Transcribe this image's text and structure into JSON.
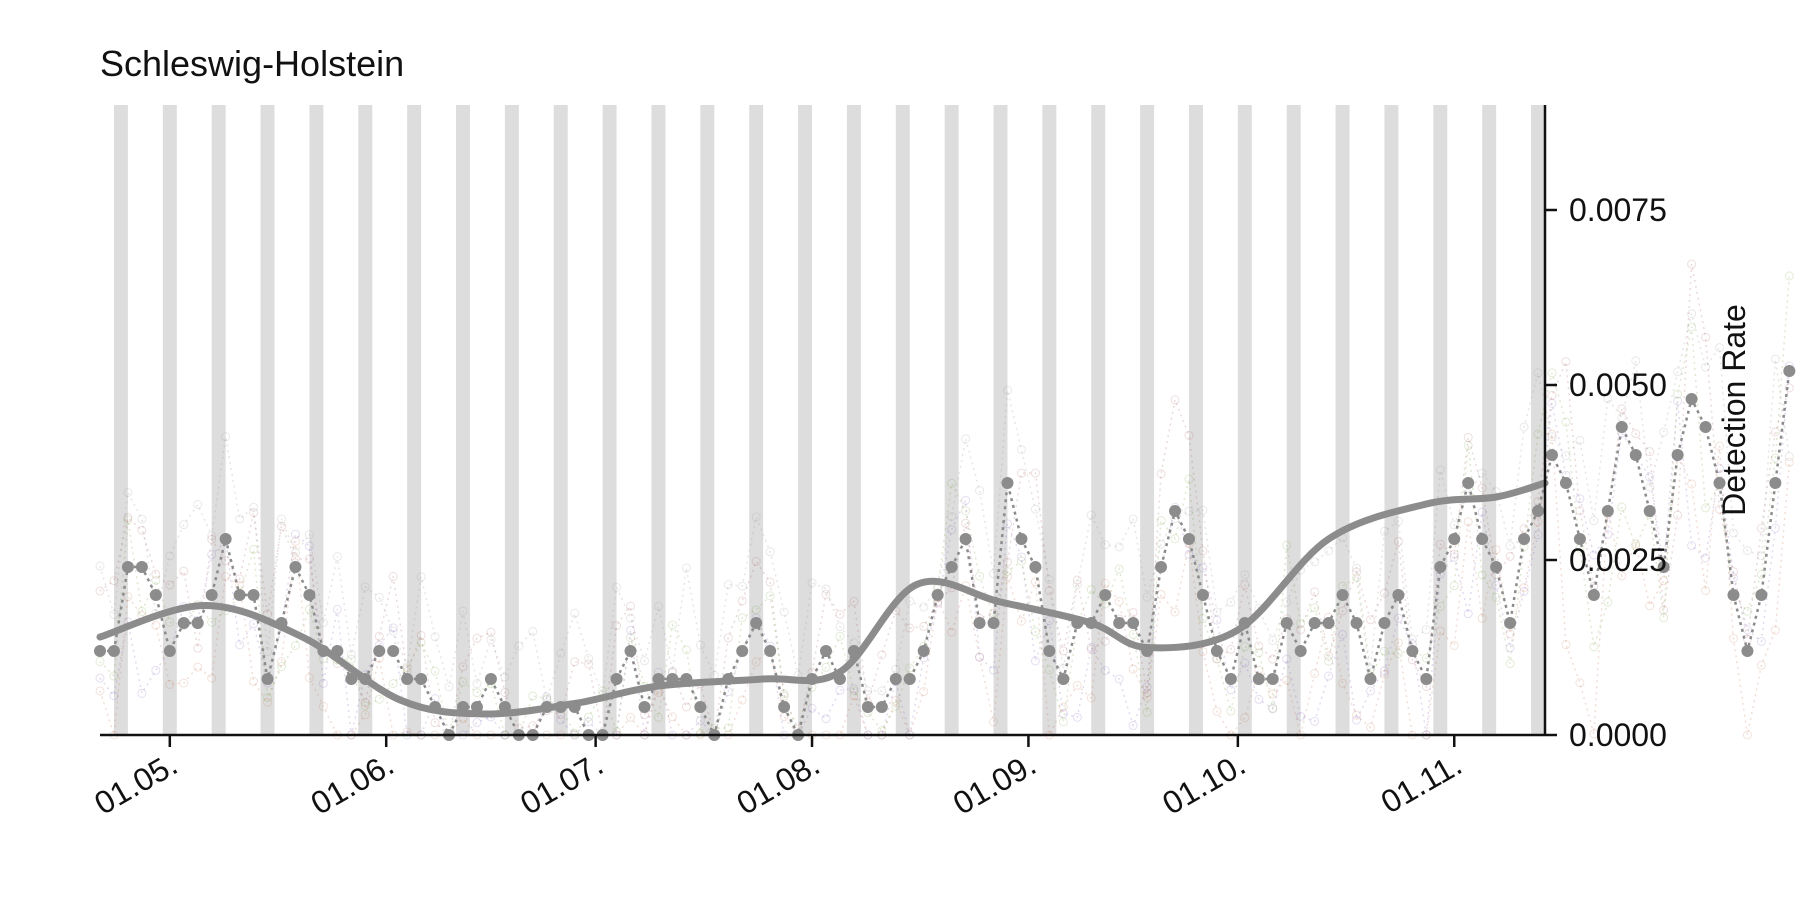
{
  "chart_data": {
    "type": "line",
    "title": "Schleswig-Holstein",
    "ylabel": "Detection Rate",
    "xlabel": "",
    "x_range": [
      "2022-04-21",
      "2022-11-14"
    ],
    "x_ticks": [
      {
        "date": "2022-05-01",
        "label": "01.05."
      },
      {
        "date": "2022-06-01",
        "label": "01.06."
      },
      {
        "date": "2022-07-01",
        "label": "01.07."
      },
      {
        "date": "2022-08-01",
        "label": "01.08."
      },
      {
        "date": "2022-09-01",
        "label": "01.09."
      },
      {
        "date": "2022-10-01",
        "label": "01.10."
      },
      {
        "date": "2022-11-01",
        "label": "01.11."
      }
    ],
    "ylim": [
      0,
      0.009
    ],
    "y_ticks": [
      {
        "value": 0.0,
        "label": "0.0000"
      },
      {
        "value": 0.0025,
        "label": "0.0025"
      },
      {
        "value": 0.005,
        "label": "0.0050"
      },
      {
        "value": 0.0075,
        "label": "0.0075"
      }
    ],
    "y_axis_side": "right",
    "grid": false,
    "shaded_weekend_bands": [
      "2022-04-24",
      "2022-05-01",
      "2022-05-08",
      "2022-05-15",
      "2022-05-22",
      "2022-05-29",
      "2022-06-05",
      "2022-06-12",
      "2022-06-19",
      "2022-06-26",
      "2022-07-03",
      "2022-07-10",
      "2022-07-17",
      "2022-07-24",
      "2022-07-31",
      "2022-08-07",
      "2022-08-14",
      "2022-08-21",
      "2022-08-28",
      "2022-09-04",
      "2022-09-11",
      "2022-09-18",
      "2022-09-25",
      "2022-10-02",
      "2022-10-09",
      "2022-10-16",
      "2022-10-23",
      "2022-10-30",
      "2022-11-06",
      "2022-11-13"
    ],
    "colors": {
      "highlight": "#8c8c8c",
      "band": "#d9d9d9",
      "background_series": [
        "#c87a5a",
        "#8a6bbf",
        "#7aa84a",
        "#b06a6a",
        "#9a9a9a"
      ]
    },
    "series": [
      {
        "style": "dotted-markers",
        "start_date": "2022-04-21",
        "step_days": 2,
        "values": [
          0.0012,
          0.0012,
          0.0024,
          0.0024,
          0.002,
          0.0012,
          0.0016,
          0.0016,
          0.002,
          0.0028,
          0.002,
          0.002,
          0.0008,
          0.0016,
          0.0024,
          0.002,
          0.0012,
          0.0012,
          0.0008,
          0.0008,
          0.0012,
          0.0012,
          0.0008,
          0.0008,
          0.0004,
          0.0,
          0.0004,
          0.0004,
          0.0008,
          0.0004,
          0.0,
          0.0,
          0.0004,
          0.0004,
          0.0004,
          0.0,
          0.0,
          0.0008,
          0.0012,
          0.0004,
          0.0008,
          0.0008,
          0.0008,
          0.0004,
          0.0,
          0.0008,
          0.0012,
          0.0016,
          0.0012,
          0.0004,
          0.0,
          0.0008,
          0.0012,
          0.0008,
          0.0012,
          0.0004,
          0.0004,
          0.0008,
          0.0008,
          0.0012,
          0.002,
          0.0024,
          0.0028,
          0.0016,
          0.0016,
          0.0036,
          0.0028,
          0.0024,
          0.0012,
          0.0008,
          0.0016,
          0.0016,
          0.002,
          0.0016,
          0.0016,
          0.0012,
          0.0024,
          0.0032,
          0.0028,
          0.002,
          0.0012,
          0.0008,
          0.0016,
          0.0008,
          0.0008,
          0.0016,
          0.0012,
          0.0016,
          0.0016,
          0.002,
          0.0016,
          0.0008,
          0.0016,
          0.002,
          0.0012,
          0.0008,
          0.0024,
          0.0028,
          0.0036,
          0.0028,
          0.0024,
          0.0016,
          0.0028,
          0.0032,
          0.004,
          0.0036,
          0.0028,
          0.002,
          0.0032,
          0.0044,
          0.004,
          0.0032,
          0.0024,
          0.004,
          0.0048,
          0.0044,
          0.0036,
          0.002,
          0.0012,
          0.002,
          0.0036,
          0.0052
        ]
      },
      {
        "style": "smooth-trend",
        "points": [
          {
            "date": "2022-04-21",
            "value": 0.0014
          },
          {
            "date": "2022-05-06",
            "value": 0.00185
          },
          {
            "date": "2022-05-20",
            "value": 0.0014
          },
          {
            "date": "2022-06-03",
            "value": 0.0005
          },
          {
            "date": "2022-06-15",
            "value": 0.0003
          },
          {
            "date": "2022-06-28",
            "value": 0.00045
          },
          {
            "date": "2022-07-10",
            "value": 0.0007
          },
          {
            "date": "2022-07-25",
            "value": 0.0008
          },
          {
            "date": "2022-08-05",
            "value": 0.0009
          },
          {
            "date": "2022-08-16",
            "value": 0.00215
          },
          {
            "date": "2022-08-28",
            "value": 0.0019
          },
          {
            "date": "2022-09-10",
            "value": 0.0016
          },
          {
            "date": "2022-09-18",
            "value": 0.00125
          },
          {
            "date": "2022-10-01",
            "value": 0.0015
          },
          {
            "date": "2022-10-14",
            "value": 0.0028
          },
          {
            "date": "2022-10-28",
            "value": 0.0033
          },
          {
            "date": "2022-11-07",
            "value": 0.0034
          },
          {
            "date": "2022-11-14",
            "value": 0.0036
          }
        ]
      }
    ]
  }
}
